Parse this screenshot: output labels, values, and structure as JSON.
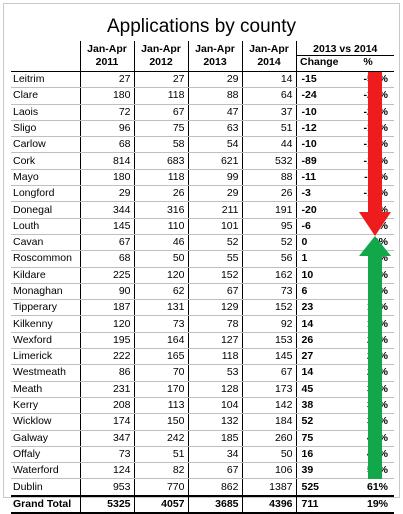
{
  "title": "Applications by county",
  "headers": {
    "period": "Jan-Apr",
    "years": [
      "2011",
      "2012",
      "2013",
      "2014"
    ],
    "compare_group": "2013 vs 2014",
    "change": "Change",
    "percent": "%"
  },
  "rows": [
    {
      "county": "Leitrim",
      "v2011": "27",
      "v2012": "27",
      "v2013": "29",
      "v2014": "14",
      "change": "-15",
      "pct": "-52%"
    },
    {
      "county": "Clare",
      "v2011": "180",
      "v2012": "118",
      "v2013": "88",
      "v2014": "64",
      "change": "-24",
      "pct": "-27%"
    },
    {
      "county": "Laois",
      "v2011": "72",
      "v2012": "67",
      "v2013": "47",
      "v2014": "37",
      "change": "-10",
      "pct": "-21%"
    },
    {
      "county": "Sligo",
      "v2011": "96",
      "v2012": "75",
      "v2013": "63",
      "v2014": "51",
      "change": "-12",
      "pct": "-19%"
    },
    {
      "county": "Carlow",
      "v2011": "68",
      "v2012": "58",
      "v2013": "54",
      "v2014": "44",
      "change": "-10",
      "pct": "-19%"
    },
    {
      "county": "Cork",
      "v2011": "814",
      "v2012": "683",
      "v2013": "621",
      "v2014": "532",
      "change": "-89",
      "pct": "-14%"
    },
    {
      "county": "Mayo",
      "v2011": "180",
      "v2012": "118",
      "v2013": "99",
      "v2014": "88",
      "change": "-11",
      "pct": "-11%"
    },
    {
      "county": "Longford",
      "v2011": "29",
      "v2012": "26",
      "v2013": "29",
      "v2014": "26",
      "change": "-3",
      "pct": "-10%"
    },
    {
      "county": "Donegal",
      "v2011": "344",
      "v2012": "316",
      "v2013": "211",
      "v2014": "191",
      "change": "-20",
      "pct": "-9%"
    },
    {
      "county": "Louth",
      "v2011": "145",
      "v2012": "110",
      "v2013": "101",
      "v2014": "95",
      "change": "-6",
      "pct": "-6%"
    },
    {
      "county": "Cavan",
      "v2011": "67",
      "v2012": "46",
      "v2013": "52",
      "v2014": "52",
      "change": "0",
      "pct": "0%"
    },
    {
      "county": "Roscommon",
      "v2011": "68",
      "v2012": "50",
      "v2013": "55",
      "v2014": "56",
      "change": "1",
      "pct": "2%"
    },
    {
      "county": "Kildare",
      "v2011": "225",
      "v2012": "120",
      "v2013": "152",
      "v2014": "162",
      "change": "10",
      "pct": "7%"
    },
    {
      "county": "Monaghan",
      "v2011": "90",
      "v2012": "62",
      "v2013": "67",
      "v2014": "73",
      "change": "6",
      "pct": "9%"
    },
    {
      "county": "Tipperary",
      "v2011": "187",
      "v2012": "131",
      "v2013": "129",
      "v2014": "152",
      "change": "23",
      "pct": "18%"
    },
    {
      "county": "Kilkenny",
      "v2011": "120",
      "v2012": "73",
      "v2013": "78",
      "v2014": "92",
      "change": "14",
      "pct": "18%"
    },
    {
      "county": "Wexford",
      "v2011": "195",
      "v2012": "164",
      "v2013": "127",
      "v2014": "153",
      "change": "26",
      "pct": "20%"
    },
    {
      "county": "Limerick",
      "v2011": "222",
      "v2012": "165",
      "v2013": "118",
      "v2014": "145",
      "change": "27",
      "pct": "23%"
    },
    {
      "county": "Westmeath",
      "v2011": "86",
      "v2012": "70",
      "v2013": "53",
      "v2014": "67",
      "change": "14",
      "pct": "26%"
    },
    {
      "county": "Meath",
      "v2011": "231",
      "v2012": "170",
      "v2013": "128",
      "v2014": "173",
      "change": "45",
      "pct": "35%"
    },
    {
      "county": "Kerry",
      "v2011": "208",
      "v2012": "113",
      "v2013": "104",
      "v2014": "142",
      "change": "38",
      "pct": "37%"
    },
    {
      "county": "Wicklow",
      "v2011": "174",
      "v2012": "150",
      "v2013": "132",
      "v2014": "184",
      "change": "52",
      "pct": "39%"
    },
    {
      "county": "Galway",
      "v2011": "347",
      "v2012": "242",
      "v2013": "185",
      "v2014": "260",
      "change": "75",
      "pct": "41%"
    },
    {
      "county": "Offaly",
      "v2011": "73",
      "v2012": "51",
      "v2013": "34",
      "v2014": "50",
      "change": "16",
      "pct": "47%"
    },
    {
      "county": "Waterford",
      "v2011": "124",
      "v2012": "82",
      "v2013": "67",
      "v2014": "106",
      "change": "39",
      "pct": "58%"
    },
    {
      "county": "Dublin",
      "v2011": "953",
      "v2012": "770",
      "v2013": "862",
      "v2014": "1387",
      "change": "525",
      "pct": "61%"
    }
  ],
  "total": {
    "label": "Grand Total",
    "v2011": "5325",
    "v2012": "4057",
    "v2013": "3685",
    "v2014": "4396",
    "change": "711",
    "pct": "19%"
  },
  "colors": {
    "decrease_arrow": "#ee1c1c",
    "increase_arrow": "#12a84a"
  }
}
